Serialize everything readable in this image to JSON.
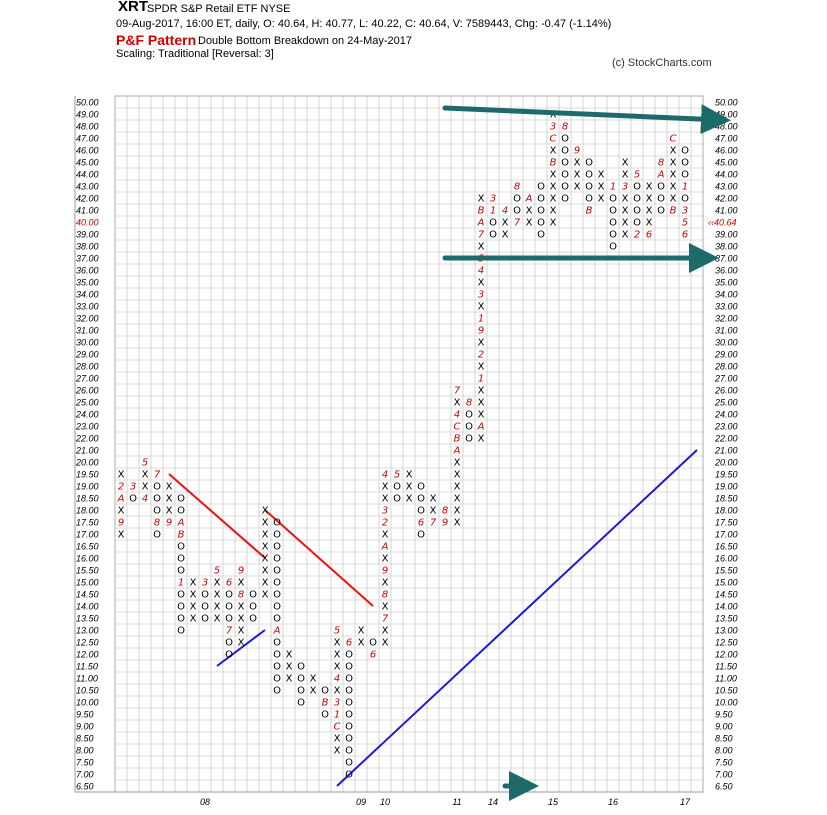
{
  "header": {
    "symbol": "XRT",
    "description": "SPDR S&P Retail ETF  NYSE",
    "quote": "09-Aug-2017, 16:00 ET, daily, O: 40.64, H: 40.77, L: 40.22, C: 40.64, V: 7589443, Chg: -0.47 (-1.14%)",
    "pattern_title": "P&F Pattern",
    "pattern_text": "Double Bottom Breakdown on 24-May-2017",
    "scaling": "Scaling: Traditional [Reversal: 3]",
    "credit": "(c) StockCharts.com"
  },
  "colors": {
    "grid": "#bbbbbb",
    "month_marker": "#cc0000",
    "resistance_line": "#ee1111",
    "support_line": "#1a1adb",
    "arrow": "#1e6a6a",
    "price_marker": "#cc0000"
  },
  "chart_data": {
    "type": "point-and-figure",
    "y_ticks": [
      "6.50",
      "7.00",
      "7.50",
      "8.00",
      "8.50",
      "9.00",
      "9.50",
      "10.00",
      "10.50",
      "11.00",
      "11.50",
      "12.00",
      "12.50",
      "13.00",
      "13.50",
      "14.00",
      "14.50",
      "15.00",
      "15.50",
      "16.00",
      "16.50",
      "17.00",
      "17.50",
      "18.00",
      "18.50",
      "19.00",
      "19.50",
      "20.00",
      "21.00",
      "22.00",
      "23.00",
      "24.00",
      "25.00",
      "26.00",
      "27.00",
      "28.00",
      "29.00",
      "30.00",
      "31.00",
      "32.00",
      "33.00",
      "34.00",
      "35.00",
      "36.00",
      "37.00",
      "38.00",
      "39.00",
      "40.00",
      "41.00",
      "42.00",
      "43.00",
      "44.00",
      "45.00",
      "46.00",
      "47.00",
      "48.00",
      "49.00",
      "50.00"
    ],
    "last_price_label": "40.64",
    "last_price_row": "40.00",
    "x_labels": [
      {
        "label": "08",
        "col": 8
      },
      {
        "label": "09",
        "col": 21
      },
      {
        "label": "10",
        "col": 23
      },
      {
        "label": "11",
        "col": 29
      },
      {
        "label": "14",
        "col": 32
      },
      {
        "label": "15",
        "col": 37
      },
      {
        "label": "16",
        "col": 42
      },
      {
        "label": "17",
        "col": 48
      }
    ],
    "columns": [
      {
        "col": 1,
        "type": "X",
        "from": "17.00",
        "to": "19.50",
        "marks": {
          "19.00": "2",
          "18.50": "A",
          "17.50": "9"
        }
      },
      {
        "col": 2,
        "type": "O",
        "from": "18.50",
        "to": "19.00",
        "marks": {
          "19.00": "3"
        }
      },
      {
        "col": 3,
        "type": "X",
        "from": "18.50",
        "to": "19.50",
        "marks": {
          "20.00": "5",
          "18.50": "4"
        }
      },
      {
        "col": 4,
        "type": "O",
        "from": "17.00",
        "to": "19.00",
        "marks": {
          "19.50": "7",
          "17.50": "8"
        }
      },
      {
        "col": 5,
        "type": "X",
        "from": "17.50",
        "to": "19.00",
        "marks": {
          "17.50": "9"
        }
      },
      {
        "col": 6,
        "type": "O",
        "from": "13.00",
        "to": "18.50",
        "marks": {
          "17.50": "A",
          "17.00": "B",
          "15.00": "1"
        }
      },
      {
        "col": 7,
        "type": "X",
        "from": "13.50",
        "to": "15.00"
      },
      {
        "col": 8,
        "type": "O",
        "from": "13.50",
        "to": "14.50",
        "marks": {
          "15.00": "3"
        }
      },
      {
        "col": 9,
        "type": "X",
        "from": "13.50",
        "to": "15.00",
        "marks": {
          "15.50": "5"
        }
      },
      {
        "col": 10,
        "type": "O",
        "from": "12.00",
        "to": "14.50",
        "marks": {
          "15.00": "6",
          "13.00": "7"
        }
      },
      {
        "col": 11,
        "type": "X",
        "from": "12.50",
        "to": "15.00",
        "marks": {
          "15.50": "9",
          "14.50": "8"
        }
      },
      {
        "col": 12,
        "type": "O",
        "from": "13.50",
        "to": "14.50"
      },
      {
        "col": 13,
        "type": "X",
        "from": "14.50",
        "to": "18.00"
      },
      {
        "col": 14,
        "type": "O",
        "from": "10.50",
        "to": "17.50",
        "marks": {
          "13.00": "A"
        }
      },
      {
        "col": 15,
        "type": "X",
        "from": "11.00",
        "to": "12.00"
      },
      {
        "col": 16,
        "type": "O",
        "from": "10.00",
        "to": "11.50"
      },
      {
        "col": 17,
        "type": "X",
        "from": "10.50",
        "to": "11.00"
      },
      {
        "col": 18,
        "type": "O",
        "from": "9.50",
        "to": "10.50",
        "marks": {
          "10.00": "B"
        }
      },
      {
        "col": 19,
        "type": "X",
        "from": "8.00",
        "to": "13.00",
        "marks": {
          "13.00": "5",
          "11.00": "4",
          "10.00": "3",
          "9.50": "1",
          "9.00": "C"
        }
      },
      {
        "col": 20,
        "type": "O",
        "from": "7.00",
        "to": "12.50",
        "marks": {
          "12.50": "6"
        }
      },
      {
        "col": 21,
        "type": "X",
        "from": "12.50",
        "to": "13.00"
      },
      {
        "col": 22,
        "type": "O",
        "from": "12.00",
        "to": "12.50",
        "marks": {
          "12.00": "6"
        }
      },
      {
        "col": 23,
        "type": "X",
        "from": "12.50",
        "to": "19.50",
        "marks": {
          "19.50": "4",
          "18.00": "3",
          "17.50": "2",
          "16.50": "A",
          "15.50": "9",
          "14.50": "8",
          "13.50": "7"
        }
      },
      {
        "col": 24,
        "type": "O",
        "from": "18.50",
        "to": "19.00",
        "marks": {
          "19.50": "5"
        }
      },
      {
        "col": 25,
        "type": "X",
        "from": "18.50",
        "to": "19.50"
      },
      {
        "col": 26,
        "type": "O",
        "from": "17.00",
        "to": "19.00",
        "marks": {
          "17.50": "6"
        }
      },
      {
        "col": 27,
        "type": "X",
        "from": "17.50",
        "to": "18.50",
        "marks": {
          "17.50": "7"
        }
      },
      {
        "col": 28,
        "type": "O",
        "from": "17.50",
        "to": "18.00",
        "marks": {
          "18.00": "8",
          "17.50": "9"
        }
      },
      {
        "col": 29,
        "type": "X",
        "from": "17.50",
        "to": "25.00",
        "marks": {
          "26.00": "7",
          "24.00": "4",
          "23.00": "C",
          "22.00": "B",
          "21.00": "A"
        }
      },
      {
        "col": 30,
        "type": "O",
        "from": "22.00",
        "to": "24.00",
        "marks": {
          "25.00": "8"
        }
      },
      {
        "col": 31,
        "type": "X",
        "from": "22.00",
        "to": "42.00",
        "marks": {
          "41.00": "B",
          "40.00": "A",
          "39.00": "7",
          "37.00": "5",
          "36.00": "4",
          "34.00": "3",
          "32.00": "1",
          "31.00": "9",
          "29.00": "2",
          "27.00": "1",
          "23.00": "A"
        }
      },
      {
        "col": 32,
        "type": "O",
        "from": "39.00",
        "to": "41.00",
        "marks": {
          "42.00": "3",
          "41.00": "1"
        }
      },
      {
        "col": 33,
        "type": "X",
        "from": "39.00",
        "to": "41.00",
        "marks": {
          "41.00": "4"
        }
      },
      {
        "col": 34,
        "type": "O",
        "from": "40.00",
        "to": "42.00",
        "marks": {
          "43.00": "8",
          "40.00": "7"
        }
      },
      {
        "col": 35,
        "type": "X",
        "from": "40.00",
        "to": "42.00",
        "marks": {
          "42.00": "A"
        }
      },
      {
        "col": 36,
        "type": "O",
        "from": "39.00",
        "to": "43.00"
      },
      {
        "col": 37,
        "type": "X",
        "from": "40.00",
        "to": "49.00",
        "marks": {
          "48.00": "3",
          "47.00": "C",
          "45.00": "B"
        }
      },
      {
        "col": 38,
        "type": "O",
        "from": "42.00",
        "to": "48.00",
        "marks": {
          "48.00": "8"
        }
      },
      {
        "col": 39,
        "type": "X",
        "from": "43.00",
        "to": "46.00",
        "marks": {
          "46.00": "9"
        }
      },
      {
        "col": 40,
        "type": "O",
        "from": "41.00",
        "to": "45.00",
        "marks": {
          "41.00": "B"
        }
      },
      {
        "col": 41,
        "type": "X",
        "from": "42.00",
        "to": "44.00"
      },
      {
        "col": 42,
        "type": "O",
        "from": "38.00",
        "to": "43.00",
        "marks": {
          "43.00": "1"
        }
      },
      {
        "col": 43,
        "type": "X",
        "from": "39.00",
        "to": "45.00",
        "marks": {
          "43.00": "3"
        }
      },
      {
        "col": 44,
        "type": "O",
        "from": "39.00",
        "to": "44.00",
        "marks": {
          "44.00": "5",
          "39.00": "2"
        }
      },
      {
        "col": 45,
        "type": "X",
        "from": "39.00",
        "to": "43.00",
        "marks": {
          "39.00": "6"
        }
      },
      {
        "col": 46,
        "type": "O",
        "from": "41.00",
        "to": "44.00",
        "marks": {
          "45.00": "8",
          "44.00": "A"
        }
      },
      {
        "col": 47,
        "type": "X",
        "from": "42.00",
        "to": "46.00",
        "marks": {
          "47.00": "C",
          "41.00": "B"
        }
      },
      {
        "col": 48,
        "type": "O",
        "from": "39.00",
        "to": "46.00",
        "marks": {
          "43.00": "1",
          "41.00": "3",
          "40.00": "5",
          "39.00": "6"
        }
      }
    ],
    "trendlines": [
      {
        "kind": "resistance",
        "from": {
          "col": 5,
          "price": "19.50"
        },
        "to": {
          "col": 13,
          "price": "16.00"
        }
      },
      {
        "kind": "resistance",
        "from": {
          "col": 13,
          "price": "18.00"
        },
        "to": {
          "col": 22,
          "price": "14.00"
        }
      },
      {
        "kind": "support",
        "from": {
          "col": 9,
          "price": "11.50"
        },
        "to": {
          "col": 13,
          "price": "13.00"
        }
      },
      {
        "kind": "support",
        "from": {
          "col": 19,
          "price": "6.50"
        },
        "to": {
          "col": 49,
          "price": "21.00"
        }
      }
    ],
    "annotation_arrows": [
      {
        "from": {
          "col": 28,
          "price": "49.50"
        },
        "to": {
          "col": 51,
          "price": "48.50"
        }
      },
      {
        "from": {
          "col": 28,
          "price": "37.00"
        },
        "to": {
          "col": 50,
          "price": "37.00"
        }
      },
      {
        "from": {
          "col": 33,
          "price": "6.50"
        },
        "to": {
          "col": 35,
          "price": "6.50"
        }
      }
    ]
  }
}
